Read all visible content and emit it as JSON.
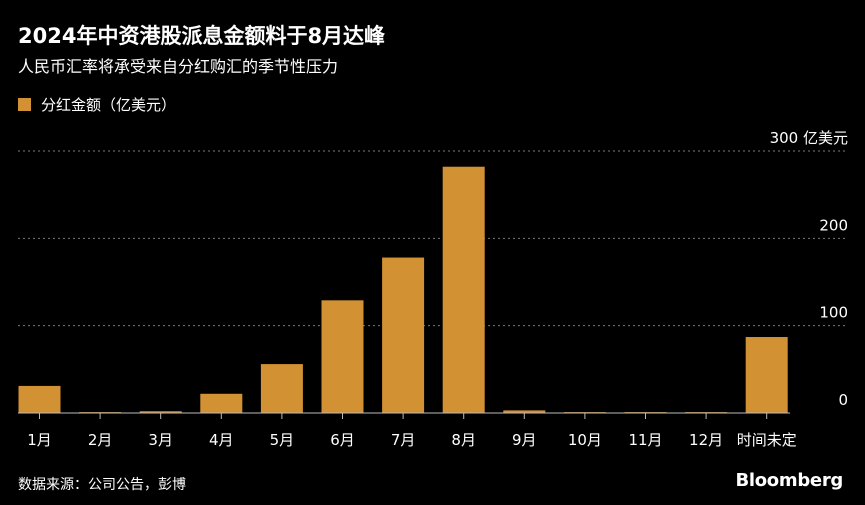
{
  "title": "2024年中资港股派息金额料于8月达峰",
  "subtitle": "人民币汇率将承受来自分红购汇的季节性压力",
  "legend": {
    "label": "分红金额（亿美元）",
    "color": "#d29132"
  },
  "source": "数据来源：公司公告，彭博",
  "brand": "Bloomberg",
  "chart_data": {
    "type": "bar",
    "categories": [
      "1月",
      "2月",
      "3月",
      "4月",
      "5月",
      "6月",
      "7月",
      "8月",
      "9月",
      "10月",
      "11月",
      "12月",
      "时间未定"
    ],
    "series": [
      {
        "name": "分红金额（亿美元）",
        "values": [
          31,
          1,
          2,
          22,
          56,
          129,
          178,
          282,
          3,
          1,
          1,
          1,
          87
        ]
      }
    ],
    "ylim": [
      0,
      300
    ],
    "yticks": [
      {
        "value": 0,
        "label": "0"
      },
      {
        "value": 100,
        "label": "100"
      },
      {
        "value": 200,
        "label": "200"
      },
      {
        "value": 300,
        "label": "300 亿美元"
      }
    ],
    "grid": true,
    "bar_color": "#d29132",
    "gridline_color": "#7a7a7a"
  }
}
